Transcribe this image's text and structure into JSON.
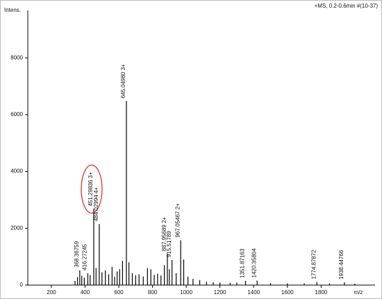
{
  "chart_data": {
    "type": "stem",
    "title": "+MS, 0.2-0.6min #(10-37)",
    "y_label": "Intens.",
    "x_label": "m/z",
    "xlim": [
      60,
      2120
    ],
    "ylim": [
      0,
      9670
    ],
    "xticks": [
      200,
      400,
      600,
      800,
      1000,
      1200,
      1400,
      1600,
      1800
    ],
    "yticks": [
      0,
      2000,
      4000,
      6000,
      8000
    ],
    "color": "#000000",
    "circle_color": "#e02020",
    "circled": [
      3,
      4,
      7
    ],
    "x": [
      340,
      355,
      368.36759,
      380,
      395,
      416.27245,
      430,
      451.29836,
      465,
      484.02994,
      500,
      520,
      540,
      560,
      575,
      590,
      605,
      622,
      645.0498,
      660,
      680,
      700,
      720,
      745,
      770,
      790,
      810,
      830,
      850,
      870,
      887.95689,
      900,
      915.51789,
      940,
      967.05467,
      985,
      1010,
      1040,
      1080,
      1120,
      1160,
      1200,
      1260,
      1300,
      1351.87163,
      1420.35804,
      1500,
      1600,
      1700,
      1774.87872,
      1850,
      1938.44766,
      2000
    ],
    "values": [
      150,
      280,
      520,
      330,
      260,
      420,
      350,
      2680,
      600,
      2150,
      450,
      520,
      380,
      640,
      300,
      480,
      560,
      850,
      6480,
      800,
      420,
      350,
      380,
      300,
      600,
      560,
      360,
      400,
      340,
      700,
      1100,
      560,
      880,
      420,
      1580,
      900,
      300,
      220,
      180,
      120,
      100,
      90,
      80,
      90,
      150,
      160,
      70,
      60,
      60,
      110,
      60,
      100,
      50
    ],
    "peak_labels": [
      null,
      null,
      "368.36759",
      null,
      null,
      "416.27245",
      null,
      "451.29836 3+",
      null,
      "484.02994 4+",
      null,
      null,
      null,
      null,
      null,
      null,
      null,
      null,
      "645.04980 3+",
      null,
      null,
      null,
      null,
      null,
      null,
      null,
      null,
      null,
      null,
      null,
      "887.95689 2+",
      null,
      "915.51789",
      null,
      "967.05467 2+",
      null,
      null,
      null,
      null,
      null,
      null,
      null,
      null,
      null,
      "1351.87163",
      "1420.35804",
      null,
      null,
      null,
      "1774.87872",
      null,
      "1938.44766",
      null
    ]
  }
}
